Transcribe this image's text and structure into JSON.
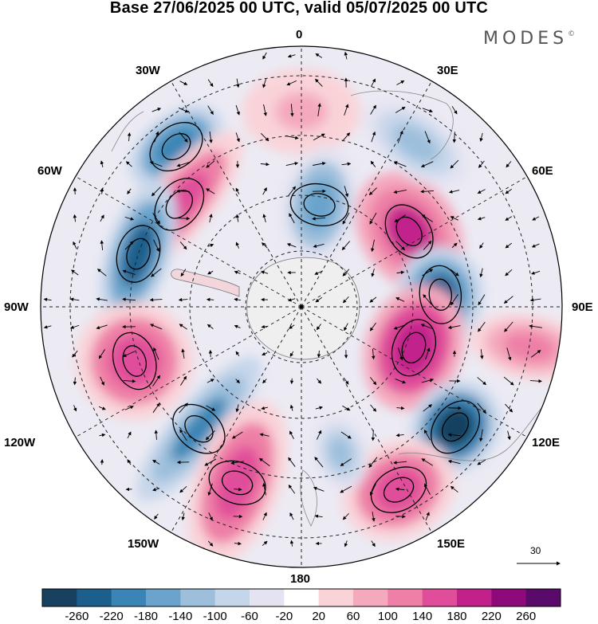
{
  "title": "Base 27/06/2025 00 UTC, valid 05/07/2025 00 UTC",
  "brand": "MODES",
  "brand_mark": "©",
  "longitude_labels": {
    "n0": "0",
    "n30e": "30E",
    "n60e": "60E",
    "n90e": "90E",
    "n120e": "120E",
    "n150e": "150E",
    "n180": "180",
    "n150w": "150W",
    "n120w": "120W",
    "n90w": "90W",
    "n60w": "60W",
    "n30w": "30W"
  },
  "reference_vector": {
    "label": "30"
  },
  "colorbar": {
    "ticks": [
      "-260",
      "-220",
      "-180",
      "-140",
      "-100",
      "-60",
      "-20",
      "20",
      "60",
      "100",
      "140",
      "180",
      "220",
      "260"
    ],
    "colors": [
      "#18415f",
      "#1d5f8c",
      "#3a85b5",
      "#6aa4cc",
      "#9dbfdc",
      "#c6d6ea",
      "#e3e3f1",
      "#ffffff",
      "#f9d3d8",
      "#f4a9bd",
      "#ee7fa6",
      "#e04d9a",
      "#c2218b",
      "#8e0a7b",
      "#5a0a6a"
    ]
  },
  "map": {
    "projection": "south-polar-stereographic",
    "field_anomalies": [
      {
        "lon_deg": 0,
        "value": 80
      },
      {
        "lon_deg": -38,
        "value": -200
      },
      {
        "lon_deg": -50,
        "value": 160
      },
      {
        "lon_deg": -72,
        "value": -230
      },
      {
        "lon_deg": -108,
        "value": 160
      },
      {
        "lon_deg": -140,
        "value": -180
      },
      {
        "lon_deg": -160,
        "value": 150
      },
      {
        "lon_deg": 10,
        "value": -170
      },
      {
        "lon_deg": 55,
        "value": 200
      },
      {
        "lon_deg": 85,
        "value": -240
      },
      {
        "lon_deg": 110,
        "value": 210
      },
      {
        "lon_deg": 128,
        "value": -260
      },
      {
        "lon_deg": 152,
        "value": 170
      },
      {
        "lon_deg": 165,
        "value": -120
      },
      {
        "lon_deg": 35,
        "value": -100
      },
      {
        "lon_deg": 100,
        "value": 120
      }
    ]
  }
}
